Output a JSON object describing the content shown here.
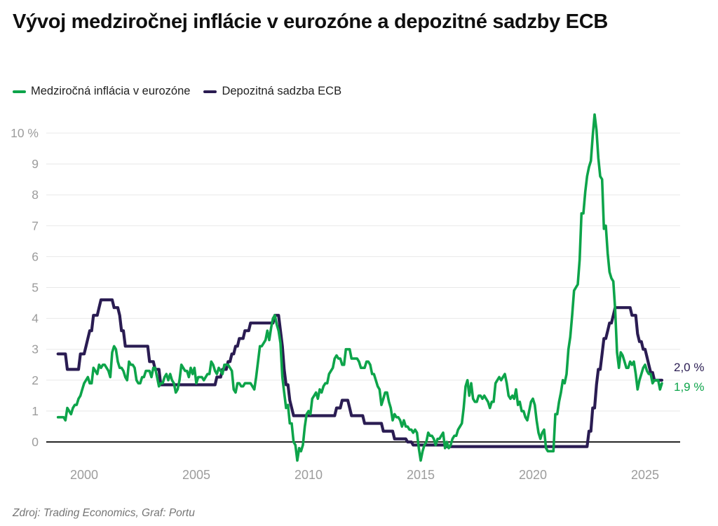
{
  "title": "Vývoj medziročnej inflácie v eurozóne a depozitné sadzby ECB",
  "footer": "Zdroj: Trading Economics, Graf: Portu",
  "end_labels": {
    "deposit": "2,0 %",
    "inflation": "1,9 %"
  },
  "colors": {
    "inflation_green": "#0da44a",
    "deposit_navy": "#2a1c52",
    "grid": "#e8e8e8",
    "zero_axis": "#262626",
    "axis_label": "#9c9c9c",
    "title_text": "#0f0f0f",
    "footer_text": "#757575"
  },
  "chart_data": {
    "type": "line",
    "title": "Vývoj medziročnej inflácie v eurozóne a depozitné sadzby ECB",
    "xlabel": "",
    "ylabel": "%",
    "grid": true,
    "legend_position": "top-left",
    "x_axis": {
      "range": [
        1998.83,
        2026.2
      ],
      "ticks": [
        2000,
        2005,
        2010,
        2015,
        2020,
        2025
      ]
    },
    "y_axis": {
      "range": [
        -0.8,
        10.8
      ],
      "ticks": [
        {
          "value": 0,
          "label": "0"
        },
        {
          "value": 1,
          "label": "1"
        },
        {
          "value": 2,
          "label": "2"
        },
        {
          "value": 3,
          "label": "3"
        },
        {
          "value": 4,
          "label": "4"
        },
        {
          "value": 5,
          "label": "5"
        },
        {
          "value": 6,
          "label": "6"
        },
        {
          "value": 7,
          "label": "7"
        },
        {
          "value": 8,
          "label": "8"
        },
        {
          "value": 9,
          "label": "9"
        },
        {
          "value": 10,
          "label": "10 %"
        }
      ]
    },
    "series": [
      {
        "name": "Medziročná inflácia v eurozóne",
        "color": "#0da44a",
        "kind": "monthly",
        "months_start": "1998-11",
        "values": [
          0.8,
          0.8,
          0.8,
          0.8,
          0.7,
          1.1,
          1.0,
          0.9,
          1.1,
          1.2,
          1.2,
          1.4,
          1.5,
          1.7,
          1.9,
          2.0,
          2.1,
          1.9,
          1.9,
          2.4,
          2.3,
          2.2,
          2.5,
          2.4,
          2.5,
          2.5,
          2.4,
          2.3,
          2.1,
          2.9,
          3.1,
          3.0,
          2.6,
          2.4,
          2.4,
          2.3,
          2.1,
          2.0,
          2.6,
          2.5,
          2.5,
          2.4,
          2.0,
          1.9,
          1.9,
          2.1,
          2.1,
          2.3,
          2.3,
          2.3,
          2.1,
          2.4,
          2.4,
          2.1,
          1.8,
          1.9,
          1.9,
          2.1,
          2.2,
          2.0,
          2.2,
          2.0,
          1.9,
          1.6,
          1.7,
          2.0,
          2.5,
          2.4,
          2.3,
          2.3,
          2.1,
          2.4,
          2.2,
          2.4,
          1.9,
          2.1,
          2.1,
          2.1,
          2.0,
          2.1,
          2.2,
          2.2,
          2.6,
          2.5,
          2.3,
          2.2,
          2.4,
          2.3,
          2.2,
          2.5,
          2.5,
          2.5,
          2.4,
          2.3,
          1.7,
          1.6,
          1.9,
          1.9,
          1.8,
          1.8,
          1.9,
          1.9,
          1.9,
          1.9,
          1.8,
          1.7,
          2.1,
          2.6,
          3.1,
          3.1,
          3.2,
          3.3,
          3.6,
          3.3,
          3.7,
          4.0,
          4.1,
          3.8,
          3.6,
          3.2,
          2.1,
          1.6,
          1.1,
          1.2,
          0.6,
          0.6,
          0.0,
          -0.1,
          -0.6,
          -0.2,
          -0.3,
          -0.1,
          0.5,
          0.9,
          1.0,
          0.9,
          1.4,
          1.5,
          1.6,
          1.4,
          1.7,
          1.6,
          1.8,
          1.9,
          1.9,
          2.2,
          2.3,
          2.4,
          2.7,
          2.8,
          2.7,
          2.7,
          2.5,
          2.5,
          3.0,
          3.0,
          3.0,
          2.7,
          2.7,
          2.7,
          2.7,
          2.6,
          2.4,
          2.4,
          2.4,
          2.6,
          2.6,
          2.5,
          2.2,
          2.2,
          2.0,
          1.8,
          1.7,
          1.2,
          1.4,
          1.6,
          1.6,
          1.3,
          1.1,
          0.7,
          0.9,
          0.8,
          0.8,
          0.7,
          0.5,
          0.7,
          0.5,
          0.5,
          0.4,
          0.4,
          0.3,
          0.4,
          0.3,
          -0.2,
          -0.6,
          -0.3,
          -0.1,
          0.0,
          0.3,
          0.2,
          0.2,
          0.1,
          -0.1,
          0.1,
          0.1,
          0.2,
          0.3,
          -0.2,
          0.0,
          -0.2,
          -0.1,
          0.1,
          0.2,
          0.2,
          0.4,
          0.5,
          0.6,
          1.1,
          1.8,
          2.0,
          1.5,
          1.9,
          1.4,
          1.3,
          1.3,
          1.5,
          1.5,
          1.4,
          1.5,
          1.4,
          1.3,
          1.1,
          1.3,
          1.3,
          1.9,
          2.0,
          2.1,
          2.0,
          2.1,
          2.2,
          1.9,
          1.5,
          1.4,
          1.5,
          1.4,
          1.7,
          1.2,
          1.3,
          1.0,
          1.0,
          0.8,
          0.7,
          1.0,
          1.3,
          1.4,
          1.2,
          0.7,
          0.3,
          0.1,
          0.3,
          0.4,
          -0.2,
          -0.3,
          -0.3,
          -0.3,
          -0.3,
          0.9,
          0.9,
          1.3,
          1.6,
          2.0,
          1.9,
          2.2,
          3.0,
          3.4,
          4.1,
          4.9,
          5.0,
          5.1,
          5.9,
          7.4,
          7.4,
          8.1,
          8.6,
          8.9,
          9.1,
          9.9,
          10.6,
          10.1,
          9.2,
          8.6,
          8.5,
          6.9,
          7.0,
          6.1,
          5.5,
          5.3,
          5.2,
          4.3,
          2.9,
          2.4,
          2.9,
          2.8,
          2.6,
          2.4,
          2.4,
          2.6,
          2.5,
          2.6,
          2.2,
          1.7,
          2.0,
          2.2,
          2.4,
          2.5,
          2.3,
          2.2,
          2.2,
          1.9,
          2.0,
          2.0,
          2.0,
          1.7,
          1.9
        ],
        "end_value_label": "1,9 %"
      },
      {
        "name": "Depozitná sadzba ECB",
        "color": "#2a1c52",
        "kind": "steps",
        "months_end": "2025-10",
        "steps": [
          [
            "1998-11",
            2.85
          ],
          [
            "1999-04",
            2.35
          ],
          [
            "1999-11",
            2.85
          ],
          [
            "2000-02",
            3.1
          ],
          [
            "2000-03",
            3.35
          ],
          [
            "2000-04",
            3.6
          ],
          [
            "2000-06",
            4.1
          ],
          [
            "2000-09",
            4.35
          ],
          [
            "2000-10",
            4.6
          ],
          [
            "2001-05",
            4.35
          ],
          [
            "2001-08",
            4.1
          ],
          [
            "2001-09",
            3.6
          ],
          [
            "2001-11",
            3.1
          ],
          [
            "2002-12",
            2.6
          ],
          [
            "2003-03",
            2.35
          ],
          [
            "2003-06",
            1.85
          ],
          [
            "2005-12",
            2.1
          ],
          [
            "2006-03",
            2.35
          ],
          [
            "2006-06",
            2.6
          ],
          [
            "2006-08",
            2.85
          ],
          [
            "2006-10",
            3.1
          ],
          [
            "2006-12",
            3.35
          ],
          [
            "2007-03",
            3.6
          ],
          [
            "2007-06",
            3.85
          ],
          [
            "2008-07",
            4.1
          ],
          [
            "2008-10",
            3.6
          ],
          [
            "2008-11",
            3.1
          ],
          [
            "2008-12",
            2.35
          ],
          [
            "2009-01",
            1.85
          ],
          [
            "2009-03",
            1.35
          ],
          [
            "2009-04",
            1.1
          ],
          [
            "2009-05",
            0.85
          ],
          [
            "2011-04",
            1.1
          ],
          [
            "2011-07",
            1.35
          ],
          [
            "2011-11",
            1.1
          ],
          [
            "2011-12",
            0.85
          ],
          [
            "2012-07",
            0.6
          ],
          [
            "2013-05",
            0.35
          ],
          [
            "2013-11",
            0.1
          ],
          [
            "2014-06",
            0.0
          ],
          [
            "2014-09",
            -0.1
          ],
          [
            "2016-03",
            -0.15
          ],
          [
            "2022-07",
            0.35
          ],
          [
            "2022-09",
            1.1
          ],
          [
            "2022-11",
            1.85
          ],
          [
            "2022-12",
            2.35
          ],
          [
            "2023-02",
            2.85
          ],
          [
            "2023-03",
            3.35
          ],
          [
            "2023-05",
            3.6
          ],
          [
            "2023-06",
            3.85
          ],
          [
            "2023-08",
            4.1
          ],
          [
            "2023-09",
            4.35
          ],
          [
            "2024-06",
            4.1
          ],
          [
            "2024-09",
            3.5
          ],
          [
            "2024-10",
            3.25
          ],
          [
            "2024-12",
            3.0
          ],
          [
            "2025-02",
            2.75
          ],
          [
            "2025-03",
            2.5
          ],
          [
            "2025-04",
            2.25
          ],
          [
            "2025-06",
            2.0
          ]
        ],
        "end_value_label": "2,0 %"
      }
    ]
  }
}
